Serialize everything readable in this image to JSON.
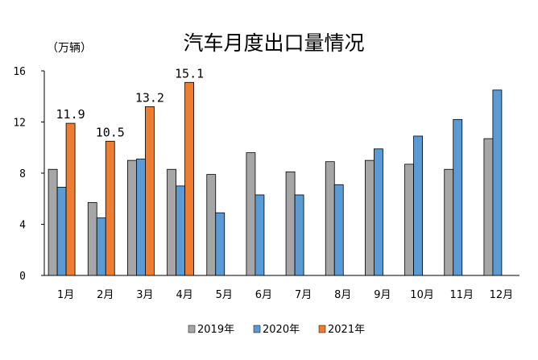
{
  "chart_data": {
    "type": "bar",
    "title": "汽车月度出口量情况",
    "unit_label": "（万辆）",
    "categories": [
      "1月",
      "2月",
      "3月",
      "4月",
      "5月",
      "6月",
      "7月",
      "8月",
      "9月",
      "10月",
      "11月",
      "12月"
    ],
    "y_ticks": [
      "0",
      "4",
      "8",
      "12",
      "16"
    ],
    "ylim": [
      0,
      16
    ],
    "grid": false,
    "legend_position": "bottom",
    "series": [
      {
        "name": "2019年",
        "color": "#a6a6a6",
        "values": [
          8.3,
          5.7,
          9.0,
          8.3,
          7.9,
          9.6,
          8.1,
          8.9,
          9.0,
          8.7,
          8.3,
          10.7
        ]
      },
      {
        "name": "2020年",
        "color": "#5b9bd5",
        "values": [
          6.9,
          4.5,
          9.1,
          7.0,
          4.9,
          6.3,
          6.3,
          7.1,
          9.9,
          10.9,
          12.2,
          14.5
        ]
      },
      {
        "name": "2021年",
        "color": "#ed7d31",
        "values": [
          11.9,
          10.5,
          13.2,
          15.1,
          null,
          null,
          null,
          null,
          null,
          null,
          null,
          null
        ],
        "data_labels": [
          "11.9",
          "10.5",
          "13.2",
          "15.1"
        ]
      }
    ]
  }
}
